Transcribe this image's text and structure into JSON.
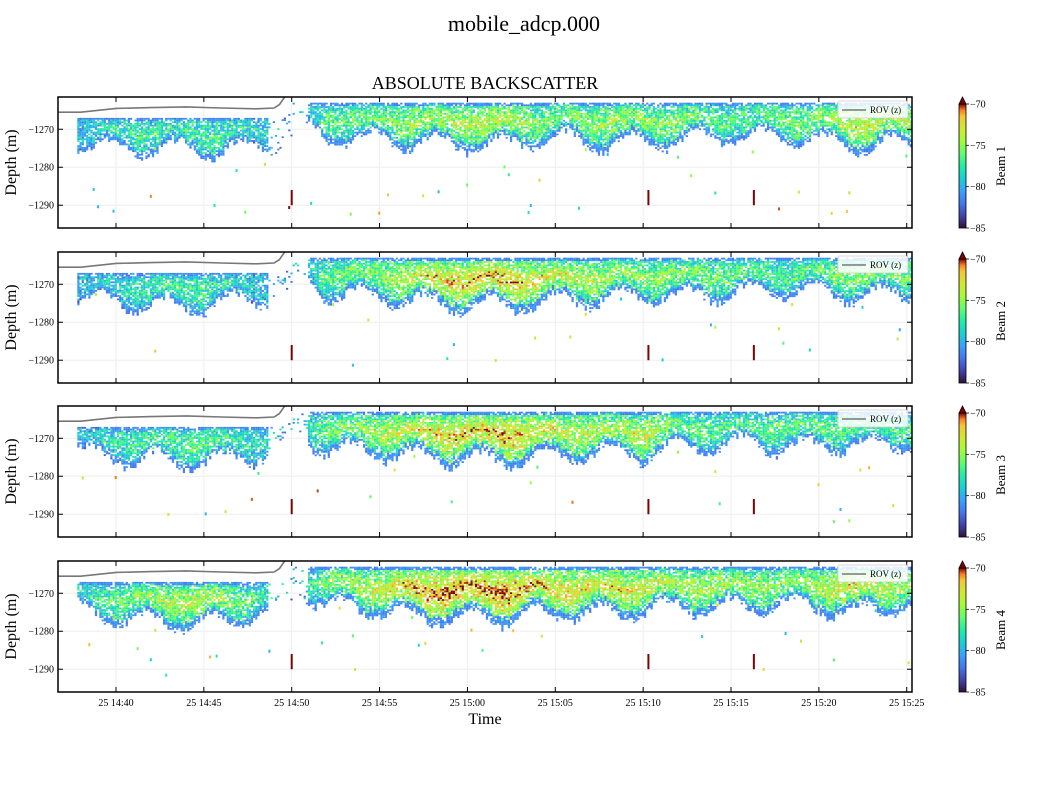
{
  "figure": {
    "suptitle": "mobile_adcp.000",
    "title": "ABSOLUTE BACKSCATTER",
    "xlabel": "Time",
    "ylabel": "Depth (m)"
  },
  "chart_data": {
    "type": "heatmap",
    "colormap": "turbo",
    "x_ticks": [
      "25 14:40",
      "25 14:45",
      "25 14:50",
      "25 14:55",
      "25 15:00",
      "25 15:05",
      "25 15:10",
      "25 15:15",
      "25 15:20",
      "25 15:25"
    ],
    "x_tick_minutes": [
      40,
      45,
      50,
      55,
      60,
      65,
      70,
      75,
      80,
      85
    ],
    "xlim_minutes": [
      36.7,
      85.3
    ],
    "y_ticks": [
      -1270,
      -1280,
      -1290
    ],
    "ylim": [
      -1296,
      -1261.5
    ],
    "colorbar": {
      "min": -85,
      "max": -70,
      "ticks": [
        -70,
        -75,
        -80,
        -85
      ],
      "extend": "max"
    },
    "legend_entry": "ROV (z)",
    "legend_placement": "top-right",
    "rov_depth": [
      [
        36.7,
        -1265.5
      ],
      [
        38,
        -1265.5
      ],
      [
        40,
        -1264.5
      ],
      [
        42,
        -1264.3
      ],
      [
        44,
        -1264.1
      ],
      [
        46,
        -1264.4
      ],
      [
        48,
        -1264.6
      ],
      [
        49,
        -1264.4
      ],
      [
        49.3,
        -1263.5
      ],
      [
        49.6,
        -1261.5
      ]
    ],
    "panels": [
      {
        "name": "Beam 1",
        "profile": [
          [
            36.7,
            0.1
          ],
          [
            39,
            0.3
          ],
          [
            41,
            0.5
          ],
          [
            43,
            0.4
          ],
          [
            45,
            0.5
          ],
          [
            47,
            0.4
          ],
          [
            48.8,
            0.3
          ],
          [
            50,
            0.1
          ],
          [
            52,
            0.55
          ],
          [
            55,
            0.65
          ],
          [
            58,
            0.8
          ],
          [
            62,
            0.85
          ],
          [
            65,
            0.6
          ],
          [
            68,
            0.8
          ],
          [
            70,
            0.7
          ],
          [
            72,
            0.7
          ],
          [
            75,
            0.5
          ],
          [
            78,
            0.6
          ],
          [
            80,
            0.7
          ],
          [
            82,
            0.9
          ],
          [
            85.3,
            0.8
          ]
        ]
      },
      {
        "name": "Beam 2",
        "profile": [
          [
            36.7,
            0.1
          ],
          [
            39,
            0.3
          ],
          [
            41,
            0.4
          ],
          [
            43,
            0.5
          ],
          [
            45,
            0.5
          ],
          [
            47,
            0.3
          ],
          [
            48.8,
            0.2
          ],
          [
            50,
            0.1
          ],
          [
            52,
            0.6
          ],
          [
            55,
            0.7
          ],
          [
            58,
            1.0
          ],
          [
            62,
            1.1
          ],
          [
            65,
            0.9
          ],
          [
            68,
            0.8
          ],
          [
            70,
            0.7
          ],
          [
            72,
            0.7
          ],
          [
            75,
            0.6
          ],
          [
            78,
            0.5
          ],
          [
            80,
            0.6
          ],
          [
            82,
            0.7
          ],
          [
            85.3,
            0.6
          ]
        ]
      },
      {
        "name": "Beam 3",
        "profile": [
          [
            36.7,
            0.1
          ],
          [
            39,
            0.3
          ],
          [
            41,
            0.5
          ],
          [
            43,
            0.5
          ],
          [
            45,
            0.6
          ],
          [
            47,
            0.4
          ],
          [
            48.8,
            0.3
          ],
          [
            50,
            0.1
          ],
          [
            52,
            0.65
          ],
          [
            55,
            0.8
          ],
          [
            58,
            1.0
          ],
          [
            62,
            1.1
          ],
          [
            65,
            0.9
          ],
          [
            68,
            0.8
          ],
          [
            70,
            0.9
          ],
          [
            72,
            0.6
          ],
          [
            75,
            0.5
          ],
          [
            78,
            0.6
          ],
          [
            80,
            0.6
          ],
          [
            82,
            0.5
          ],
          [
            85.3,
            0.5
          ]
        ]
      },
      {
        "name": "Beam 4",
        "profile": [
          [
            36.7,
            0.2
          ],
          [
            39,
            0.5
          ],
          [
            41,
            0.7
          ],
          [
            43,
            0.8
          ],
          [
            45,
            0.9
          ],
          [
            47,
            0.6
          ],
          [
            48.8,
            0.4
          ],
          [
            50,
            0.1
          ],
          [
            52,
            0.7
          ],
          [
            55,
            0.9
          ],
          [
            58,
            1.2
          ],
          [
            62,
            1.2
          ],
          [
            65,
            1.0
          ],
          [
            68,
            1.0
          ],
          [
            70,
            0.9
          ],
          [
            72,
            0.8
          ],
          [
            75,
            0.8
          ],
          [
            78,
            0.7
          ],
          [
            80,
            0.8
          ],
          [
            82,
            1.0
          ],
          [
            85.3,
            0.7
          ]
        ]
      }
    ]
  }
}
